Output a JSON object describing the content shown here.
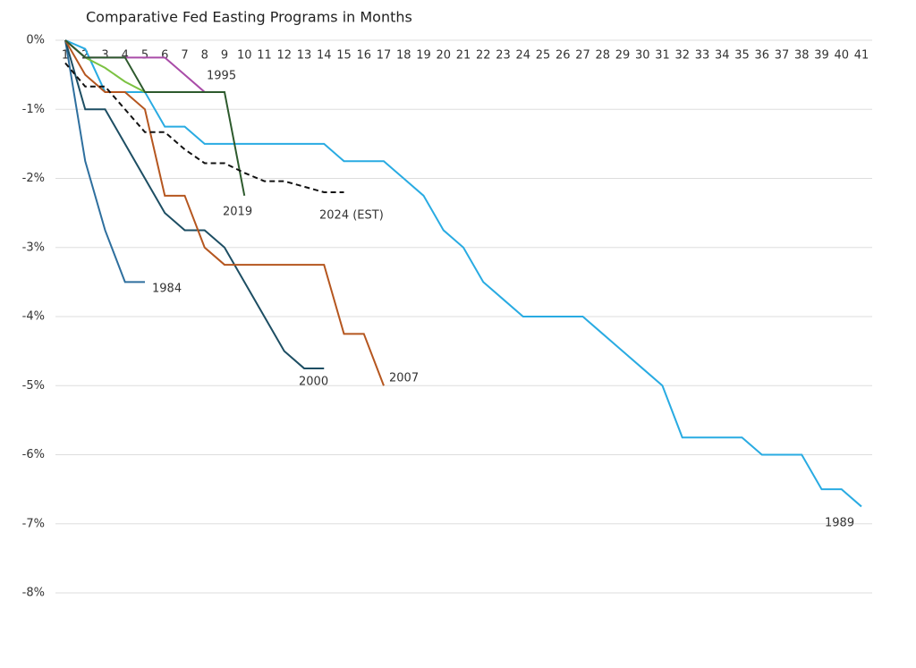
{
  "chart_data": {
    "type": "line",
    "title": "Comparative Fed Easting Programs in Months",
    "x": [
      1,
      2,
      3,
      4,
      5,
      6,
      7,
      8,
      9,
      10,
      11,
      12,
      13,
      14,
      15,
      16,
      17,
      18,
      19,
      20,
      21,
      22,
      23,
      24,
      25,
      26,
      27,
      28,
      29,
      30,
      31,
      32,
      33,
      34,
      35,
      36,
      37,
      38,
      39,
      40,
      41
    ],
    "xlim": [
      1,
      41
    ],
    "xticks": [
      1,
      2,
      3,
      4,
      5,
      6,
      7,
      8,
      9,
      10,
      11,
      12,
      13,
      14,
      15,
      16,
      17,
      18,
      19,
      20,
      21,
      22,
      23,
      24,
      25,
      26,
      27,
      28,
      29,
      30,
      31,
      32,
      33,
      34,
      35,
      36,
      37,
      38,
      39,
      40,
      41
    ],
    "ylim": [
      -8,
      0
    ],
    "yticks": [
      {
        "value": 0,
        "label": "0%"
      },
      {
        "value": -1,
        "label": "-1%"
      },
      {
        "value": -2,
        "label": "-2%"
      },
      {
        "value": -3,
        "label": "-3%"
      },
      {
        "value": -4,
        "label": "-4%"
      },
      {
        "value": -5,
        "label": "-5%"
      },
      {
        "value": -6,
        "label": "-6%"
      },
      {
        "value": -7,
        "label": "-7%"
      },
      {
        "value": -8,
        "label": "-8%"
      }
    ],
    "grid": true,
    "series": [
      {
        "name": "1989",
        "color": "#29abe2",
        "values": [
          0,
          -0.125,
          -0.75,
          -0.75,
          -0.75,
          -1.25,
          -1.25,
          -1.5,
          -1.5,
          -1.5,
          -1.5,
          -1.5,
          -1.5,
          -1.5,
          -1.75,
          -1.75,
          -1.75,
          -2,
          -2.25,
          -2.75,
          -3,
          -3.5,
          -3.75,
          -4,
          -4,
          -4,
          -4,
          -4.25,
          -4.5,
          -4.75,
          -5,
          -5.75,
          -5.75,
          -5.75,
          -5.75,
          -6,
          -6,
          -6,
          -6.5,
          -6.5,
          -6.75
        ]
      },
      {
        "name": "1984",
        "color": "#2e6f9e",
        "values": [
          0,
          -1.75,
          -2.75,
          -3.5,
          -3.5,
          null,
          null,
          null,
          null,
          null,
          null,
          null,
          null,
          null,
          null,
          null,
          null,
          null,
          null,
          null,
          null,
          null,
          null,
          null,
          null,
          null,
          null,
          null,
          null,
          null,
          null,
          null,
          null,
          null,
          null,
          null,
          null,
          null,
          null,
          null,
          null
        ]
      },
      {
        "name": "2000",
        "color": "#1d4e63",
        "values": [
          0,
          -1,
          -1,
          -1.5,
          -2,
          -2.5,
          -2.75,
          -2.75,
          -3,
          -3.5,
          -4,
          -4.5,
          -4.75,
          -4.75,
          null,
          null,
          null,
          null,
          null,
          null,
          null,
          null,
          null,
          null,
          null,
          null,
          null,
          null,
          null,
          null,
          null,
          null,
          null,
          null,
          null,
          null,
          null,
          null,
          null,
          null,
          null
        ]
      },
      {
        "name": "2007",
        "color": "#b5561f",
        "values": [
          0,
          -0.5,
          -0.75,
          -0.75,
          -1,
          -2.25,
          -2.25,
          -3,
          -3.25,
          -3.25,
          -3.25,
          -3.25,
          -3.25,
          -3.25,
          -4.25,
          -4.25,
          -5,
          null,
          null,
          null,
          null,
          null,
          null,
          null,
          null,
          null,
          null,
          null,
          null,
          null,
          null,
          null,
          null,
          null,
          null,
          null,
          null,
          null,
          null,
          null,
          null
        ]
      },
      {
        "color": "#7cc242",
        "values": [
          0,
          -0.25,
          -0.4,
          -0.6,
          -0.75,
          null,
          null,
          null,
          null,
          null,
          null,
          null,
          null,
          null,
          null,
          null,
          null,
          null,
          null,
          null,
          null,
          null,
          null,
          null,
          null,
          null,
          null,
          null,
          null,
          null,
          null,
          null,
          null,
          null,
          null,
          null,
          null,
          null,
          null,
          null,
          null
        ]
      },
      {
        "name": "1995",
        "color": "#a94ca8",
        "values": [
          0,
          -0.25,
          -0.25,
          -0.25,
          -0.25,
          -0.25,
          -0.5,
          -0.75,
          null,
          null,
          null,
          null,
          null,
          null,
          null,
          null,
          null,
          null,
          null,
          null,
          null,
          null,
          null,
          null,
          null,
          null,
          null,
          null,
          null,
          null,
          null,
          null,
          null,
          null,
          null,
          null,
          null,
          null,
          null,
          null,
          null
        ]
      },
      {
        "name": "2019",
        "color": "#2d5a2d",
        "values": [
          0,
          -0.25,
          -0.25,
          -0.25,
          -0.75,
          -0.75,
          -0.75,
          -0.75,
          -0.75,
          -2.25,
          null,
          null,
          null,
          null,
          null,
          null,
          null,
          null,
          null,
          null,
          null,
          null,
          null,
          null,
          null,
          null,
          null,
          null,
          null,
          null,
          null,
          null,
          null,
          null,
          null,
          null,
          null,
          null,
          null,
          null,
          null
        ]
      },
      {
        "name": "2024 (EST)",
        "color": "#111111",
        "dashed": true,
        "values": [
          -0.33,
          -0.67,
          -0.67,
          -1,
          -1.33,
          -1.33,
          -1.58,
          -1.78,
          -1.78,
          -1.92,
          -2.04,
          -2.04,
          -2.12,
          -2.2,
          -2.2,
          null,
          null,
          null,
          null,
          null,
          null,
          null,
          null,
          null,
          null,
          null,
          null,
          null,
          null,
          null,
          null,
          null,
          null,
          null,
          null,
          null,
          null,
          null,
          null,
          null,
          null
        ]
      }
    ]
  }
}
